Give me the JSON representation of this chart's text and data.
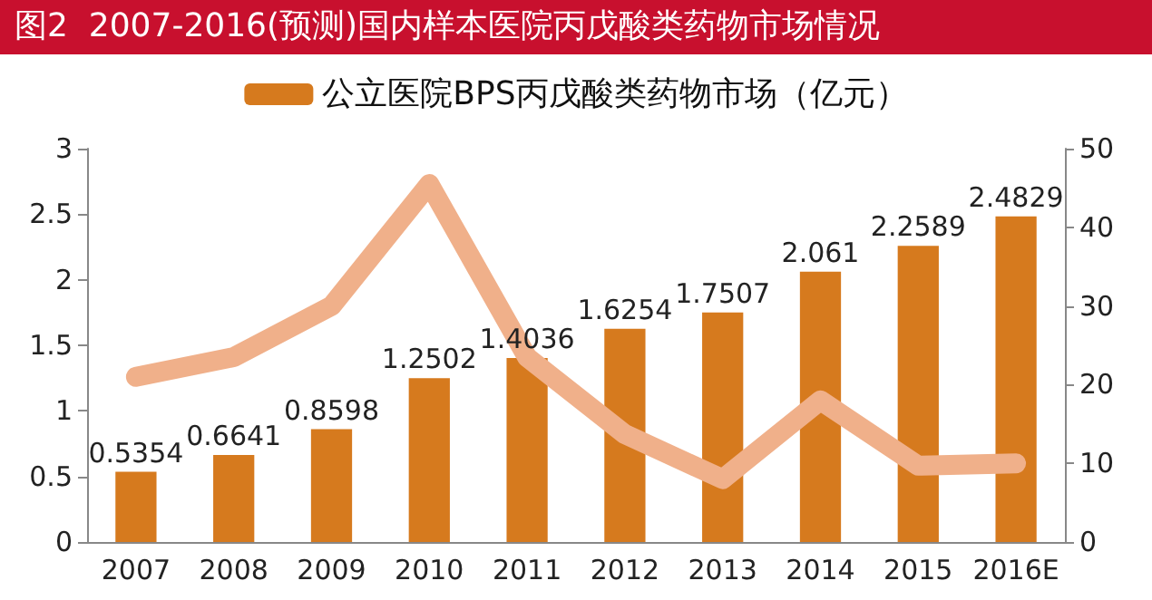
{
  "chart_data": {
    "type": "bar",
    "title": "图2  2007-2016(预测)国内样本医院丙戊酸类药物市场情况",
    "categories": [
      "2007",
      "2008",
      "2009",
      "2010",
      "2011",
      "2012",
      "2013",
      "2014",
      "2015",
      "2016E"
    ],
    "series": [
      {
        "name": "公立医院BPS丙戊酸类药物市场（亿元）",
        "color": "#d67a1e",
        "values": [
          0.5354,
          0.6641,
          0.8598,
          1.2502,
          1.4036,
          1.6254,
          1.7507,
          2.061,
          2.2589,
          2.4829
        ],
        "value_labels": [
          "0.5354",
          "0.6641",
          "0.8598",
          "1.2502",
          "1.4036",
          "1.6254",
          "1.7507",
          "2.061",
          "2.2589",
          "2.4829"
        ]
      },
      {
        "type": "line",
        "axis": "y2",
        "color": "#f0b08a",
        "values": [
          21,
          23.5,
          30,
          45.5,
          23.5,
          13.7,
          8,
          18,
          9.7,
          10
        ]
      }
    ],
    "ylim": [
      0,
      3
    ],
    "yticks": [
      0,
      0.5,
      1,
      1.5,
      2,
      2.5,
      3
    ],
    "y2lim": [
      0,
      50
    ],
    "y2ticks": [
      0,
      10,
      20,
      30,
      40,
      50
    ],
    "legend": "top",
    "grid": false
  }
}
